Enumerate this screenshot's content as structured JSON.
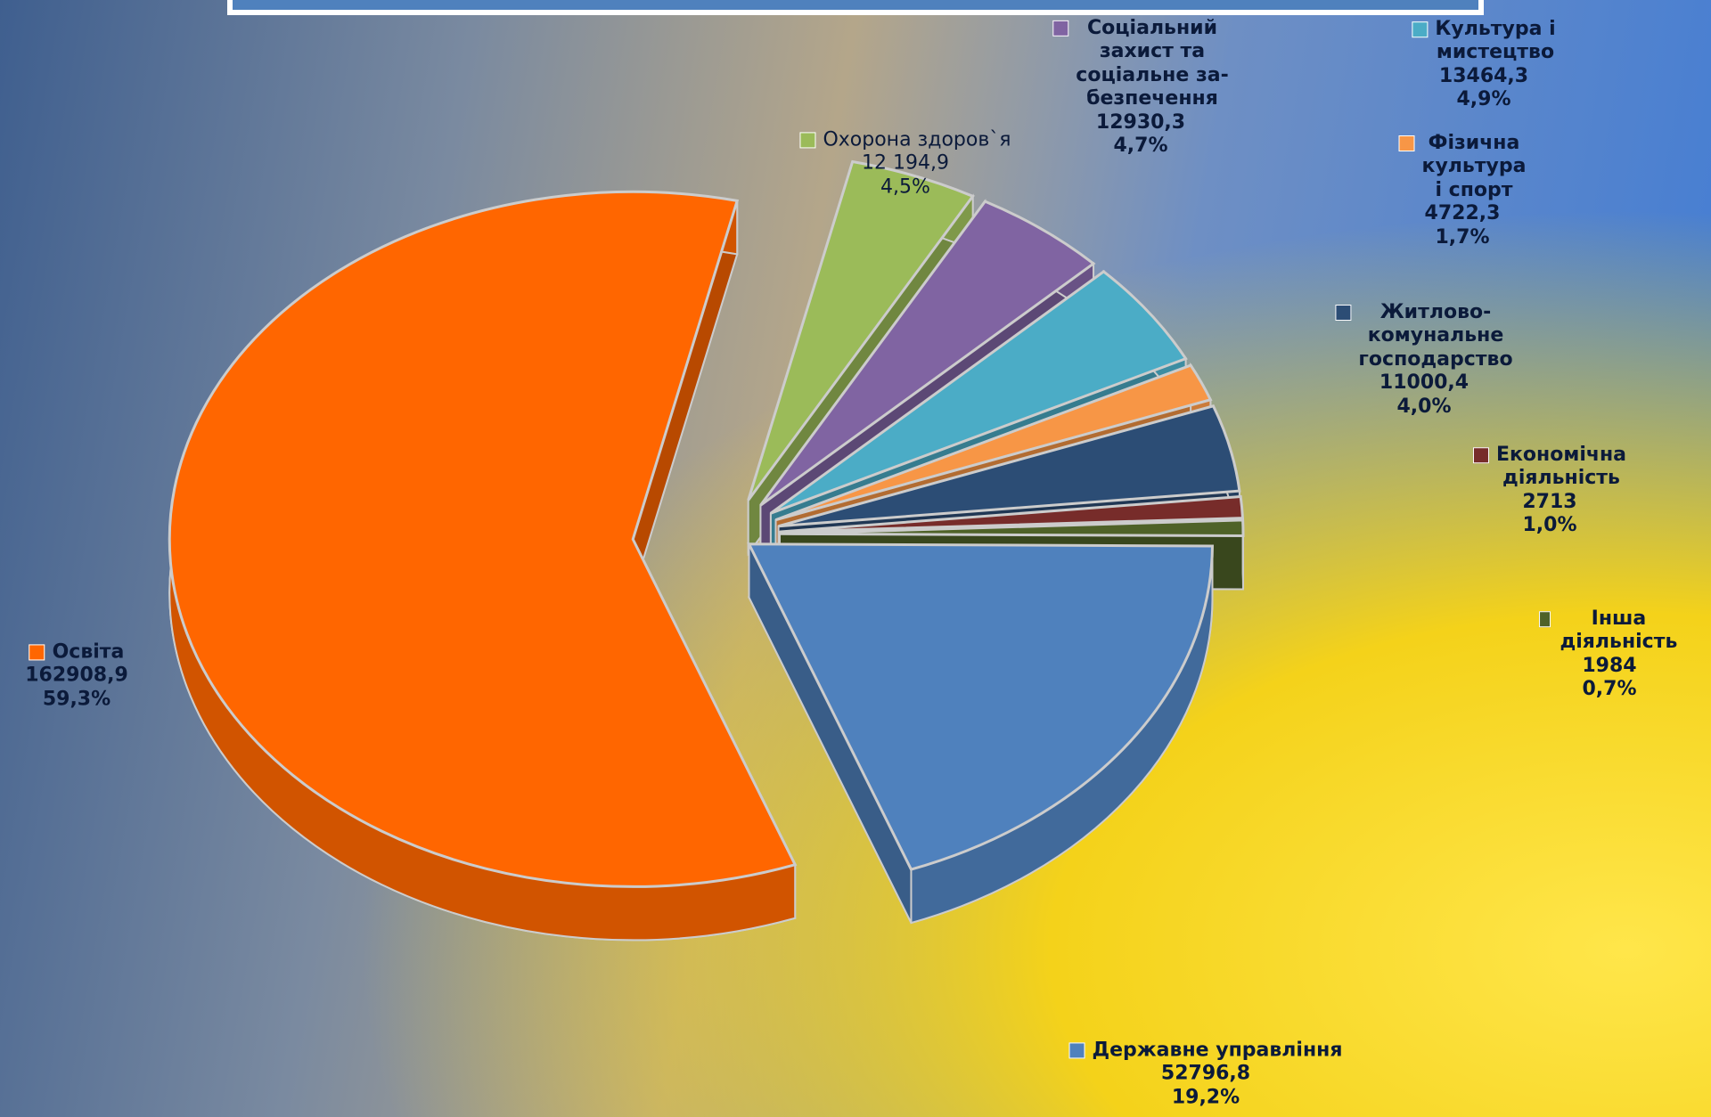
{
  "chart_data": {
    "type": "pie3d",
    "categories": [
      "Охорона здоров`я",
      "Соціальний\nзахист та\nсоціальне за-\nбезпечення",
      "Культура і\nмистецтво",
      "Фізична\nкультура\nі спорт",
      "Житлово-\nкомунальне\nгосподарство",
      "Економічна\nдіяльність",
      "Інша діяльність",
      "Державне управління",
      "Освіта"
    ],
    "values": [
      12194.9,
      12930.3,
      13464.3,
      4722.3,
      11000.4,
      2713,
      1984,
      52796.8,
      162908.9
    ],
    "value_labels": [
      "12 194,9",
      "12930,3",
      "13464,3",
      "4722,3",
      "11000,4",
      "2713",
      "1984",
      "52796,8",
      "162908,9"
    ],
    "percents": [
      4.5,
      4.7,
      4.9,
      1.7,
      4.0,
      1.0,
      0.7,
      19.2,
      59.3
    ],
    "percent_labels": [
      "4,5%",
      "4,7%",
      "4,9%",
      "1,7%",
      "4,0%",
      "1,0%",
      "0,7%",
      "19,2%",
      "59,3%"
    ],
    "colors": [
      "#9bbb59",
      "#8064a2",
      "#4bacc6",
      "#f79646",
      "#2c4d75",
      "#772c2a",
      "#4f6228",
      "#4f81bd",
      "#ff6600"
    ]
  }
}
